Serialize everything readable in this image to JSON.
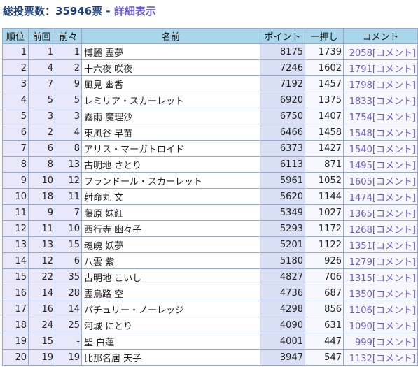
{
  "header": {
    "summary": "総投票数：35946票 - ",
    "detail_link": "詳細表示"
  },
  "columns": [
    "順位",
    "前回",
    "前々",
    "名前",
    "ポイント",
    "一押し",
    "コメント"
  ],
  "rows": [
    {
      "rank": "1",
      "prev": "1",
      "prev2": "1",
      "name": "博麗 霊夢",
      "points": "8175",
      "push": "1739",
      "comment": "2058[コメント]"
    },
    {
      "rank": "2",
      "prev": "4",
      "prev2": "2",
      "name": "十六夜 咲夜",
      "points": "7246",
      "push": "1602",
      "comment": "1791[コメント]"
    },
    {
      "rank": "3",
      "prev": "7",
      "prev2": "9",
      "name": "風見 幽香",
      "points": "7192",
      "push": "1457",
      "comment": "1798[コメント]"
    },
    {
      "rank": "4",
      "prev": "5",
      "prev2": "5",
      "name": "レミリア・スカーレット",
      "points": "6920",
      "push": "1375",
      "comment": "1833[コメント]"
    },
    {
      "rank": "5",
      "prev": "3",
      "prev2": "3",
      "name": "霧雨 魔理沙",
      "points": "6750",
      "push": "1407",
      "comment": "1754[コメント]"
    },
    {
      "rank": "6",
      "prev": "2",
      "prev2": "4",
      "name": "東風谷 早苗",
      "points": "6466",
      "push": "1458",
      "comment": "1548[コメント]"
    },
    {
      "rank": "7",
      "prev": "6",
      "prev2": "8",
      "name": "アリス・マーガトロイド",
      "points": "6373",
      "push": "1427",
      "comment": "1540[コメント]"
    },
    {
      "rank": "8",
      "prev": "8",
      "prev2": "13",
      "name": "古明地 さとり",
      "points": "6113",
      "push": "871",
      "comment": "1495[コメント]"
    },
    {
      "rank": "9",
      "prev": "10",
      "prev2": "12",
      "name": "フランドール・スカーレット",
      "points": "5961",
      "push": "1052",
      "comment": "1605[コメント]"
    },
    {
      "rank": "10",
      "prev": "18",
      "prev2": "11",
      "name": "射命丸 文",
      "points": "5620",
      "push": "1144",
      "comment": "1474[コメント]"
    },
    {
      "rank": "11",
      "prev": "9",
      "prev2": "7",
      "name": "藤原 妹紅",
      "points": "5349",
      "push": "1027",
      "comment": "1365[コメント]"
    },
    {
      "rank": "12",
      "prev": "11",
      "prev2": "10",
      "name": "西行寺 幽々子",
      "points": "5293",
      "push": "1172",
      "comment": "1268[コメント]"
    },
    {
      "rank": "13",
      "prev": "13",
      "prev2": "15",
      "name": "魂魄 妖夢",
      "points": "5201",
      "push": "1122",
      "comment": "1351[コメント]"
    },
    {
      "rank": "14",
      "prev": "12",
      "prev2": "6",
      "name": "八雲 紫",
      "points": "5180",
      "push": "926",
      "comment": "1279[コメント]"
    },
    {
      "rank": "15",
      "prev": "22",
      "prev2": "35",
      "name": "古明地 こいし",
      "points": "4827",
      "push": "706",
      "comment": "1315[コメント]"
    },
    {
      "rank": "16",
      "prev": "14",
      "prev2": "28",
      "name": "霊烏路 空",
      "points": "4736",
      "push": "687",
      "comment": "1350[コメント]"
    },
    {
      "rank": "17",
      "prev": "16",
      "prev2": "14",
      "name": "パチュリー・ノーレッジ",
      "points": "4298",
      "push": "856",
      "comment": "1106[コメント]"
    },
    {
      "rank": "18",
      "prev": "24",
      "prev2": "25",
      "name": "河城 にとり",
      "points": "4090",
      "push": "631",
      "comment": "1090[コメント]"
    },
    {
      "rank": "19",
      "prev": "15",
      "prev2": "-",
      "name": "聖 白蓮",
      "points": "4001",
      "push": "447",
      "comment": "999[コメント]"
    },
    {
      "rank": "20",
      "prev": "19",
      "prev2": "19",
      "name": "比那名居 天子",
      "points": "3947",
      "push": "547",
      "comment": "1132[コメント]"
    }
  ]
}
